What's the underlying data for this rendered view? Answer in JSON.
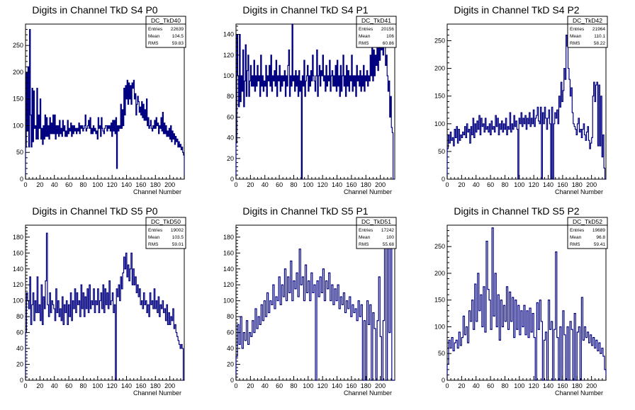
{
  "colors": {
    "line": "#000080",
    "axis": "#000000",
    "background": "#ffffff"
  },
  "stats_labels": {
    "entries": "Entries",
    "mean": "Mean",
    "rms": "RMS"
  },
  "chart_data": [
    {
      "type": "line",
      "title": "Digits in Channel TkD S4 P0",
      "xlabel": "Channel Number",
      "ylabel": "",
      "xlim": [
        0,
        220
      ],
      "ylim": [
        0,
        290
      ],
      "xticks": [
        0,
        20,
        40,
        60,
        80,
        100,
        120,
        140,
        160,
        180,
        200
      ],
      "yticks": [
        0,
        50,
        100,
        150,
        200,
        250
      ],
      "stats": {
        "name": "DC_TkD40",
        "entries": "22639",
        "mean": "104.5",
        "rms": "59.83"
      },
      "series": [
        {
          "values": [
            60,
            200,
            90,
            210,
            60,
            280,
            120,
            60,
            170,
            70,
            165,
            95,
            100,
            75,
            170,
            75,
            120,
            95,
            150,
            75,
            95,
            65,
            100,
            75,
            120,
            80,
            115,
            80,
            100,
            75,
            115,
            85,
            105,
            85,
            120,
            85,
            120,
            75,
            100,
            85,
            100,
            80,
            110,
            85,
            95,
            80,
            110,
            90,
            100,
            80,
            90,
            80,
            110,
            85,
            95,
            90,
            105,
            80,
            100,
            85,
            100,
            90,
            95,
            85,
            95,
            90,
            105,
            85,
            100,
            95,
            100,
            90,
            95,
            100,
            120,
            90,
            95,
            100,
            110,
            95,
            115,
            85,
            95,
            85,
            100,
            90,
            95,
            85,
            90,
            75,
            115,
            95,
            100,
            80,
            115,
            95,
            90,
            85,
            95,
            100,
            100,
            90,
            100,
            95,
            100,
            90,
            105,
            80,
            110,
            90,
            110,
            85,
            115,
            20,
            100,
            90,
            100,
            95,
            140,
            95,
            130,
            100,
            170,
            120,
            175,
            150,
            185,
            140,
            180,
            150,
            175,
            140,
            180,
            170,
            185,
            150,
            160,
            120,
            140,
            155,
            145,
            125,
            135,
            120,
            145,
            115,
            140,
            110,
            130,
            110,
            150,
            100,
            115,
            95,
            100,
            110,
            95,
            90,
            100,
            95,
            110,
            95,
            115,
            100,
            105,
            85,
            100,
            95,
            115,
            90,
            125,
            85,
            105,
            85,
            100,
            80,
            90,
            80,
            95,
            75,
            100,
            70,
            90,
            75,
            85,
            65,
            80,
            70,
            75,
            60,
            70,
            60,
            65,
            55,
            60,
            50,
            45
          ]
        }
      ]
    },
    {
      "type": "line",
      "title": "Digits in Channel TkD S4 P1",
      "xlabel": "Channel Number",
      "ylabel": "",
      "xlim": [
        0,
        220
      ],
      "ylim": [
        0,
        150
      ],
      "xticks": [
        0,
        20,
        40,
        60,
        80,
        100,
        120,
        140,
        160,
        180,
        200
      ],
      "yticks": [
        0,
        20,
        40,
        60,
        80,
        100,
        120,
        140
      ],
      "stats": {
        "name": "DC_TkD41",
        "entries": "20156",
        "mean": "106",
        "rms": "60.86"
      },
      "series": [
        {
          "values": [
            35,
            140,
            100,
            70,
            140,
            75,
            100,
            85,
            125,
            70,
            95,
            130,
            80,
            105,
            120,
            80,
            95,
            110,
            90,
            100,
            90,
            115,
            85,
            100,
            90,
            110,
            95,
            100,
            80,
            120,
            90,
            100,
            85,
            95,
            90,
            110,
            80,
            100,
            95,
            110,
            90,
            120,
            85,
            100,
            95,
            105,
            90,
            115,
            80,
            100,
            95,
            110,
            85,
            100,
            90,
            100,
            95,
            105,
            80,
            100,
            90,
            110,
            125,
            80,
            100,
            90,
            150,
            95,
            100,
            85,
            105,
            90,
            100,
            80,
            105,
            85,
            95,
            0,
            100,
            90,
            115,
            80,
            95,
            100,
            110,
            85,
            100,
            90,
            105,
            95,
            120,
            100,
            95,
            85,
            100,
            125,
            80,
            100,
            110,
            90,
            105,
            100,
            120,
            95,
            100,
            85,
            110,
            90,
            100,
            95,
            115,
            85,
            100,
            105,
            90,
            100,
            90,
            110,
            85,
            115,
            90,
            100,
            80,
            110,
            85,
            100,
            120,
            90,
            100,
            80,
            110,
            90,
            105,
            85,
            100,
            95,
            120,
            85,
            100,
            90,
            100,
            80,
            110,
            95,
            100,
            90,
            105,
            85,
            100,
            90,
            110,
            85,
            100,
            95,
            105,
            90,
            100,
            95,
            120,
            100,
            130,
            95,
            125,
            100,
            120,
            110,
            140,
            105,
            130,
            115,
            135,
            125,
            145,
            120,
            130,
            140,
            110,
            120,
            100,
            85,
            95,
            60,
            80,
            50,
            45,
            0,
            0
          ]
        }
      ]
    },
    {
      "type": "line",
      "title": "Digits in Channel TkD S4 P2",
      "xlabel": "Channel Number",
      "ylabel": "",
      "xlim": [
        0,
        220
      ],
      "ylim": [
        0,
        280
      ],
      "xticks": [
        0,
        20,
        40,
        60,
        80,
        100,
        120,
        140,
        160,
        180,
        200
      ],
      "yticks": [
        0,
        50,
        100,
        150,
        200,
        250
      ],
      "stats": {
        "name": "DC_TkD42",
        "entries": "21964",
        "mean": "110.1",
        "rms": "58.22"
      },
      "series": [
        {
          "values": [
            55,
            80,
            65,
            85,
            70,
            75,
            60,
            90,
            75,
            95,
            65,
            90,
            70,
            80,
            75,
            85,
            80,
            95,
            75,
            100,
            85,
            90,
            65,
            95,
            80,
            110,
            75,
            100,
            85,
            105,
            90,
            115,
            80,
            110,
            95,
            100,
            85,
            110,
            90,
            95,
            85,
            100,
            80,
            105,
            90,
            95,
            85,
            115,
            95,
            110,
            80,
            100,
            90,
            105,
            85,
            100,
            90,
            110,
            80,
            95,
            90,
            120,
            85,
            100,
            90,
            115,
            95,
            105,
            90,
            0,
            110,
            100,
            120,
            95,
            110,
            100,
            115,
            90,
            110,
            100,
            120,
            95,
            110,
            100,
            125,
            95,
            110,
            115,
            130,
            105,
            100,
            130,
            0,
            120,
            100,
            130,
            110,
            90,
            110,
            125,
            100,
            0,
            130,
            0,
            100,
            120,
            110,
            125,
            100,
            150,
            130,
            175,
            140,
            160,
            200,
            180,
            260,
            240,
            200,
            180,
            150,
            165,
            120,
            100,
            95,
            90,
            80,
            100,
            110,
            85,
            90,
            75,
            90,
            100,
            80,
            70,
            85,
            95,
            70,
            55,
            65,
            75,
            150,
            175,
            140,
            170,
            175,
            60,
            170,
            60,
            150,
            40,
            80,
            20,
            0
          ]
        }
      ]
    },
    {
      "type": "line",
      "title": "Digits in Channel TkD S5 P0",
      "xlabel": "Channel Number",
      "ylabel": "",
      "xlim": [
        0,
        220
      ],
      "ylim": [
        0,
        195
      ],
      "xticks": [
        0,
        20,
        40,
        60,
        80,
        100,
        120,
        140,
        160,
        180,
        200
      ],
      "yticks": [
        0,
        20,
        40,
        60,
        80,
        100,
        120,
        140,
        160,
        180
      ],
      "stats": {
        "name": "DC_TkD50",
        "entries": "19002",
        "mean": "103.5",
        "rms": "59.01"
      },
      "series": [
        {
          "values": [
            60,
            110,
            100,
            90,
            130,
            70,
            95,
            110,
            75,
            100,
            85,
            130,
            85,
            95,
            75,
            120,
            70,
            105,
            90,
            125,
            185,
            95,
            80,
            110,
            85,
            100,
            95,
            90,
            75,
            115,
            85,
            100,
            80,
            90,
            75,
            105,
            70,
            95,
            85,
            100,
            70,
            95,
            80,
            110,
            75,
            100,
            90,
            115,
            85,
            110,
            95,
            100,
            80,
            120,
            90,
            110,
            80,
            105,
            90,
            115,
            85,
            120,
            90,
            100,
            95,
            115,
            85,
            100,
            95,
            115,
            85,
            100,
            110,
            90,
            120,
            85,
            115,
            95,
            110,
            90,
            125,
            95,
            100,
            110,
            85,
            95,
            0,
            115,
            105,
            120,
            100,
            130,
            115,
            135,
            155,
            140,
            160,
            130,
            145,
            125,
            140,
            160,
            120,
            140,
            120,
            130,
            110,
            120,
            105,
            115,
            95,
            100,
            90,
            110,
            95,
            100,
            85,
            95,
            80,
            110,
            95,
            100,
            90,
            115,
            90,
            100,
            85,
            105,
            80,
            95,
            90,
            100,
            85,
            90,
            75,
            95,
            70,
            85,
            70,
            80,
            75,
            90,
            65,
            70,
            60,
            55,
            50,
            45,
            40,
            45,
            40,
            0
          ]
        }
      ]
    },
    {
      "type": "line",
      "title": "Digits in Channel TkD S5 P1",
      "xlabel": "Channel Number",
      "ylabel": "",
      "xlim": [
        0,
        220
      ],
      "ylim": [
        0,
        195
      ],
      "xticks": [
        0,
        20,
        40,
        60,
        80,
        100,
        120,
        140,
        160,
        180,
        200
      ],
      "yticks": [
        0,
        20,
        40,
        60,
        80,
        100,
        120,
        140,
        160,
        180
      ],
      "stats": {
        "name": "DC_TkD51",
        "entries": "17242",
        "mean": "100",
        "rms": "55.68"
      },
      "series": [
        {
          "values": [
            30,
            70,
            45,
            80,
            40,
            60,
            50,
            75,
            45,
            60,
            55,
            75,
            60,
            90,
            65,
            80,
            70,
            95,
            75,
            100,
            80,
            110,
            85,
            100,
            95,
            120,
            90,
            105,
            100,
            130,
            95,
            120,
            105,
            140,
            100,
            130,
            110,
            150,
            100,
            125,
            115,
            135,
            105,
            165,
            120,
            130,
            100,
            145,
            110,
            125,
            100,
            135,
            110,
            120,
            0,
            125,
            105,
            130,
            110,
            140,
            100,
            125,
            115,
            135,
            100,
            120,
            95,
            115,
            100,
            120,
            90,
            105,
            95,
            110,
            85,
            100,
            90,
            105,
            80,
            95,
            85,
            90,
            75,
            100,
            80,
            95,
            0,
            75,
            0,
            100,
            70,
            95,
            0,
            85,
            65,
            0,
            75,
            130,
            55,
            0,
            75,
            185,
            0,
            175,
            60,
            185,
            0,
            0
          ]
        }
      ]
    },
    {
      "type": "line",
      "title": "Digits in Channel TkD S5 P2",
      "xlabel": "Channel Number",
      "ylabel": "",
      "xlim": [
        0,
        220
      ],
      "ylim": [
        0,
        290
      ],
      "xticks": [
        0,
        20,
        40,
        60,
        80,
        100,
        120,
        140,
        160,
        180,
        200
      ],
      "yticks": [
        0,
        50,
        100,
        150,
        200,
        250
      ],
      "stats": {
        "name": "DC_TkD52",
        "entries": "19689",
        "mean": "96.8",
        "rms": "59.41"
      },
      "series": [
        {
          "values": [
            30,
            75,
            60,
            80,
            55,
            70,
            75,
            60,
            90,
            65,
            80,
            120,
            85,
            100,
            70,
            130,
            110,
            150,
            95,
            180,
            110,
            200,
            130,
            160,
            100,
            175,
            90,
            260,
            170,
            150,
            95,
            285,
            120,
            200,
            100,
            160,
            75,
            150,
            100,
            140,
            110,
            175,
            95,
            165,
            110,
            155,
            80,
            150,
            95,
            140,
            85,
            130,
            100,
            140,
            85,
            130,
            80,
            135,
            90,
            125,
            80,
            0,
            145,
            95,
            150,
            110,
            0,
            75,
            90,
            0,
            150,
            95,
            110,
            0,
            95,
            240,
            80,
            0,
            100,
            0,
            130,
            85,
            0,
            100,
            0,
            110,
            95,
            0,
            125,
            0,
            90,
            100,
            0,
            155,
            75,
            100,
            80,
            90,
            70,
            85,
            65,
            80,
            60,
            75,
            55,
            70,
            50,
            60,
            45,
            20
          ]
        }
      ]
    }
  ]
}
